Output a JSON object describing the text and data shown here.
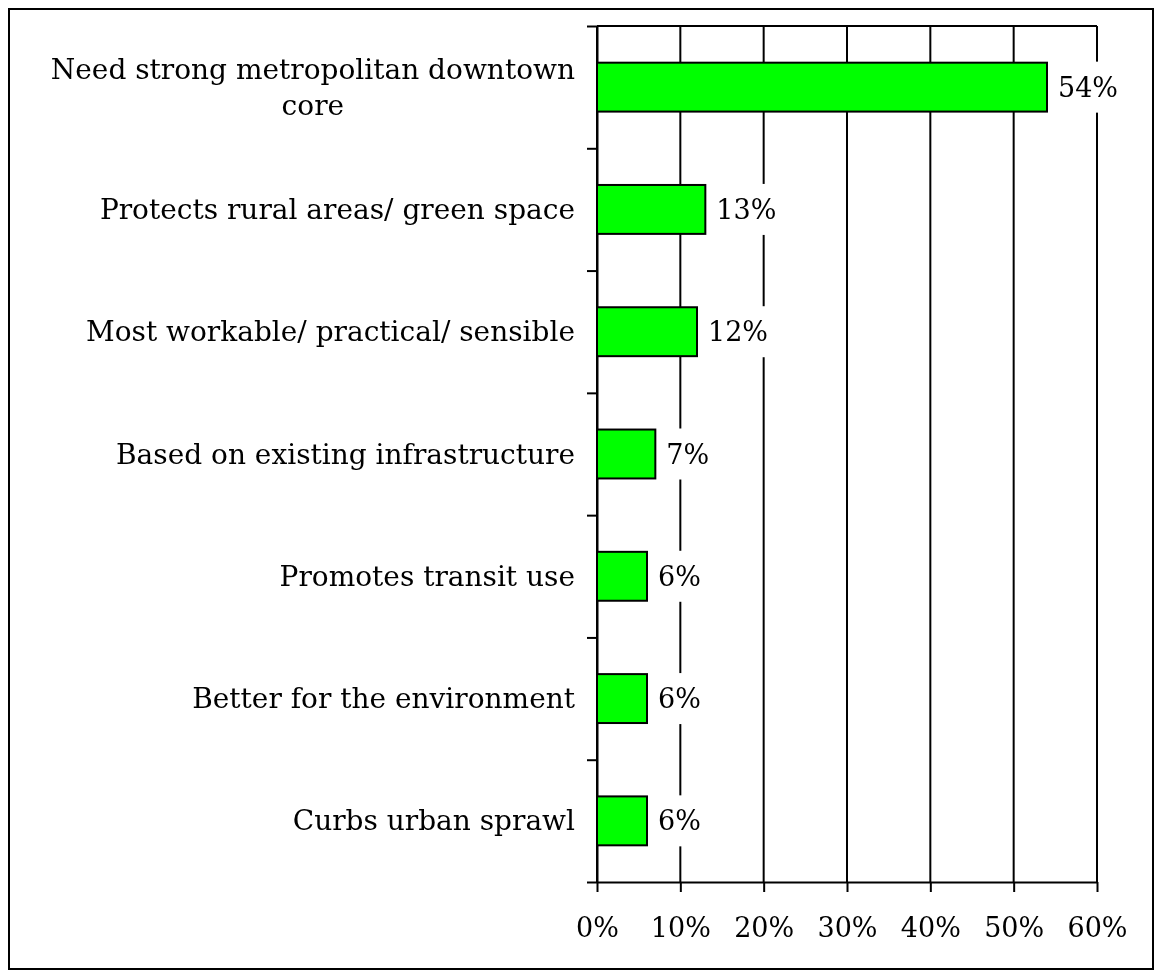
{
  "chart_data": {
    "type": "bar",
    "orientation": "horizontal",
    "categories": [
      "Need strong metropolitan downtown core",
      "Protects rural areas/ green space",
      "Most workable/ practical/ sensible",
      "Based on existing infrastructure",
      "Promotes transit use",
      "Better for the environment",
      "Curbs urban sprawl"
    ],
    "values": [
      54,
      13,
      12,
      7,
      6,
      6,
      6
    ],
    "color": "#00ff00",
    "value_labels": [
      "54%",
      "13%",
      "12%",
      "7%",
      "6%",
      "6%",
      "6%"
    ],
    "xlim": [
      0,
      60
    ],
    "xticks": [
      {
        "value": 0,
        "label": "0%"
      },
      {
        "value": 10,
        "label": "10%"
      },
      {
        "value": 20,
        "label": "20%"
      },
      {
        "value": 30,
        "label": "30%"
      },
      {
        "value": 40,
        "label": "40%"
      },
      {
        "value": 50,
        "label": "50%"
      },
      {
        "value": 60,
        "label": "60%"
      }
    ],
    "grid": "x"
  }
}
